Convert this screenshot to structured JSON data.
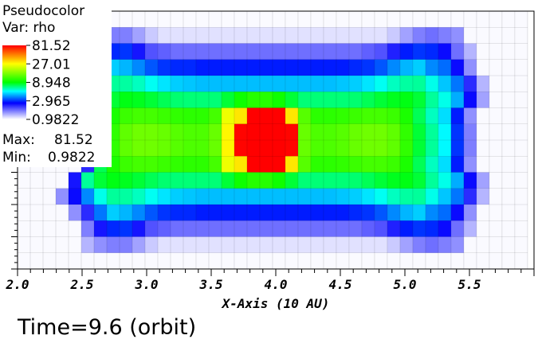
{
  "chart_data": {
    "type": "heatmap",
    "legend": {
      "title": "Pseudocolor",
      "var_label": "Var: rho",
      "ticks": [
        "81.52",
        "27.01",
        "8.948",
        "2.965",
        "0.9822"
      ],
      "max_label": "Max:",
      "max_value": "81.52",
      "min_label": "Min:",
      "min_value": "0.9822",
      "placement": "top-left"
    },
    "color_scale": "log",
    "value_range": [
      0.9822,
      81.52
    ],
    "x_axis": {
      "label": "X-Axis (10 AU)",
      "range": [
        2.0,
        6.0
      ],
      "ticks": [
        "2.0",
        "2.5",
        "3.0",
        "3.5",
        "4.0",
        "4.5",
        "5.0",
        "5.5"
      ],
      "tick_values": [
        2.0,
        2.5,
        3.0,
        3.5,
        4.0,
        4.5,
        5.0,
        5.5
      ]
    },
    "grid": true,
    "x_cell_range": [
      2.0,
      5.95
    ],
    "rows": [
      [
        1.0,
        1.0,
        1.0,
        1.0,
        1.0,
        1.0,
        1.0,
        1.0,
        1.0,
        1.0,
        1.0,
        1.0,
        1.0,
        1.0,
        1.0,
        1.0,
        1.0,
        1.0,
        1.0,
        1.0,
        1.0,
        1.0,
        1.0,
        1.0,
        1.0,
        1.0,
        1.0,
        1.0,
        1.0,
        1.0,
        1.0,
        1.0,
        1.0,
        1.0,
        1.0,
        1.0,
        1.0,
        1.0,
        1.0,
        1.0
      ],
      [
        1.0,
        1.0,
        1.0,
        1.0,
        1.0,
        1.0,
        1.5,
        1.6,
        1.6,
        1.4,
        1.2,
        1.1,
        1.1,
        1.1,
        1.1,
        1.1,
        1.1,
        1.1,
        1.1,
        1.1,
        1.1,
        1.1,
        1.1,
        1.1,
        1.1,
        1.1,
        1.1,
        1.1,
        1.1,
        1.2,
        1.4,
        1.6,
        1.7,
        1.6,
        1.5,
        1.0,
        1.0,
        1.0,
        1.0,
        1.0
      ],
      [
        1.0,
        1.0,
        1.0,
        1.0,
        1.0,
        1.6,
        2.4,
        2.9,
        3.0,
        2.4,
        1.9,
        1.8,
        1.7,
        1.7,
        1.7,
        1.7,
        1.7,
        1.7,
        1.7,
        1.7,
        1.7,
        1.7,
        1.7,
        1.7,
        1.7,
        1.7,
        1.7,
        1.8,
        1.9,
        2.3,
        2.8,
        3.0,
        2.9,
        2.5,
        1.7,
        1.3,
        1.0,
        1.0,
        1.0,
        1.0
      ],
      [
        1.0,
        1.0,
        1.0,
        1.0,
        1.0,
        1.7,
        3.6,
        4.6,
        4.3,
        3.8,
        3.3,
        3.0,
        2.9,
        2.9,
        2.8,
        2.8,
        2.8,
        2.8,
        2.8,
        2.8,
        2.8,
        2.8,
        2.8,
        2.8,
        2.8,
        2.8,
        2.9,
        3.0,
        3.3,
        3.8,
        4.3,
        4.6,
        3.8,
        3.5,
        2.5,
        1.5,
        1.0,
        1.0,
        1.0,
        1.0
      ],
      [
        1.0,
        1.0,
        1.0,
        1.0,
        1.0,
        1.8,
        5.5,
        6.5,
        6.4,
        6.0,
        5.4,
        4.9,
        4.6,
        4.5,
        4.4,
        4.4,
        4.4,
        4.4,
        4.4,
        4.4,
        4.4,
        4.4,
        4.4,
        4.4,
        4.4,
        4.5,
        4.6,
        4.9,
        5.4,
        6.0,
        6.4,
        6.5,
        5.5,
        4.5,
        3.6,
        2.2,
        1.3,
        1.0,
        1.0,
        1.0
      ],
      [
        1.0,
        1.0,
        1.0,
        1.0,
        1.0,
        2.0,
        6.5,
        8.0,
        8.6,
        8.4,
        8.0,
        7.5,
        7.1,
        7.0,
        7.0,
        7.0,
        8.0,
        9.5,
        10.5,
        10.5,
        9.5,
        8.0,
        7.0,
        7.0,
        7.0,
        7.0,
        7.1,
        7.5,
        8.0,
        8.4,
        8.6,
        8.0,
        6.5,
        5.5,
        4.2,
        2.5,
        1.4,
        1.0,
        1.0,
        1.0
      ],
      [
        1.0,
        1.0,
        1.0,
        1.0,
        1.0,
        2.2,
        7.5,
        10.0,
        11.5,
        12.0,
        12.0,
        11.5,
        11.0,
        10.8,
        10.8,
        12.0,
        25.0,
        30.0,
        82.0,
        82.0,
        82.0,
        30.0,
        13.0,
        10.8,
        10.8,
        11.0,
        11.5,
        12.0,
        12.0,
        11.5,
        10.0,
        7.5,
        6.0,
        4.8,
        2.8,
        1.5,
        1.0,
        1.0,
        1.0,
        1.0
      ],
      [
        1.0,
        1.0,
        1.0,
        1.0,
        1.0,
        2.3,
        8.0,
        11.0,
        13.5,
        14.5,
        14.5,
        14.0,
        13.0,
        12.5,
        12.5,
        14.0,
        28.0,
        80.0,
        81.5,
        81.5,
        81.5,
        80.0,
        14.0,
        12.5,
        12.5,
        13.0,
        14.0,
        14.5,
        14.5,
        13.5,
        11.0,
        8.0,
        6.5,
        5.2,
        3.0,
        1.6,
        1.0,
        1.0,
        1.0,
        1.0
      ],
      [
        1.0,
        1.0,
        1.0,
        1.0,
        1.0,
        2.3,
        8.0,
        11.0,
        13.5,
        14.5,
        14.5,
        14.0,
        13.0,
        12.5,
        12.5,
        14.0,
        28.0,
        80.0,
        81.5,
        81.5,
        81.5,
        80.0,
        14.0,
        12.5,
        12.5,
        13.0,
        14.0,
        14.5,
        14.5,
        13.5,
        11.0,
        8.0,
        6.5,
        5.2,
        3.0,
        1.6,
        1.0,
        1.0,
        1.0,
        1.0
      ],
      [
        1.0,
        1.0,
        1.0,
        1.0,
        1.0,
        2.2,
        7.5,
        10.0,
        11.5,
        12.0,
        12.0,
        11.5,
        11.0,
        10.8,
        10.8,
        12.0,
        25.0,
        30.0,
        82.0,
        82.0,
        82.0,
        30.0,
        13.0,
        10.8,
        10.8,
        11.0,
        11.5,
        12.0,
        12.0,
        11.5,
        10.0,
        7.5,
        6.0,
        4.8,
        2.8,
        1.5,
        1.0,
        1.0,
        1.0,
        1.0
      ],
      [
        1.0,
        1.0,
        1.0,
        1.0,
        2.4,
        6.5,
        8.0,
        8.6,
        8.4,
        8.0,
        7.5,
        7.1,
        7.0,
        7.0,
        7.0,
        7.0,
        8.0,
        9.5,
        10.5,
        10.5,
        9.5,
        8.0,
        7.0,
        7.0,
        7.0,
        7.0,
        7.1,
        7.5,
        8.0,
        8.4,
        8.6,
        8.0,
        6.5,
        5.5,
        4.2,
        2.5,
        1.4,
        1.0,
        1.0,
        1.0
      ],
      [
        1.0,
        1.0,
        1.0,
        1.5,
        2.5,
        3.8,
        5.5,
        6.5,
        6.4,
        6.0,
        5.4,
        4.9,
        4.6,
        4.5,
        4.4,
        4.4,
        4.4,
        4.4,
        4.4,
        4.4,
        4.4,
        4.4,
        4.4,
        4.4,
        4.4,
        4.5,
        4.6,
        4.9,
        5.4,
        6.0,
        6.4,
        6.5,
        5.5,
        4.5,
        3.6,
        2.2,
        1.3,
        1.0,
        1.0,
        1.0
      ],
      [
        1.0,
        1.0,
        1.0,
        1.0,
        1.5,
        2.2,
        3.6,
        4.6,
        4.3,
        3.8,
        3.3,
        3.0,
        2.9,
        2.9,
        2.8,
        2.8,
        2.8,
        2.8,
        2.8,
        2.8,
        2.8,
        2.8,
        2.8,
        2.8,
        2.8,
        2.8,
        2.9,
        3.0,
        3.3,
        3.8,
        4.3,
        4.6,
        3.8,
        3.5,
        2.5,
        1.5,
        1.0,
        1.0,
        1.0,
        1.0
      ],
      [
        1.0,
        1.0,
        1.0,
        1.0,
        1.0,
        1.6,
        2.4,
        2.9,
        3.0,
        2.4,
        1.9,
        1.8,
        1.7,
        1.7,
        1.7,
        1.7,
        1.7,
        1.7,
        1.7,
        1.7,
        1.7,
        1.7,
        1.7,
        1.7,
        1.7,
        1.7,
        1.7,
        1.8,
        1.9,
        2.3,
        2.8,
        3.0,
        2.9,
        2.5,
        1.7,
        1.3,
        1.0,
        1.0,
        1.0,
        1.0
      ],
      [
        1.0,
        1.0,
        1.0,
        1.0,
        1.0,
        1.3,
        1.5,
        1.6,
        1.6,
        1.4,
        1.2,
        1.1,
        1.1,
        1.1,
        1.1,
        1.1,
        1.1,
        1.1,
        1.1,
        1.1,
        1.1,
        1.1,
        1.1,
        1.1,
        1.1,
        1.1,
        1.1,
        1.1,
        1.1,
        1.2,
        1.4,
        1.6,
        1.7,
        1.6,
        1.5,
        1.0,
        1.0,
        1.0,
        1.0,
        1.0
      ],
      [
        1.0,
        1.0,
        1.0,
        1.0,
        1.0,
        1.0,
        1.0,
        1.0,
        1.0,
        1.0,
        1.0,
        1.0,
        1.0,
        1.0,
        1.0,
        1.0,
        1.0,
        1.0,
        1.0,
        1.0,
        1.0,
        1.0,
        1.0,
        1.0,
        1.0,
        1.0,
        1.0,
        1.0,
        1.0,
        1.0,
        1.0,
        1.0,
        1.0,
        1.0,
        1.0,
        1.0,
        1.0,
        1.0,
        1.0,
        1.0
      ]
    ]
  },
  "footer": {
    "time_label": "Time=9.6 (orbit)"
  }
}
